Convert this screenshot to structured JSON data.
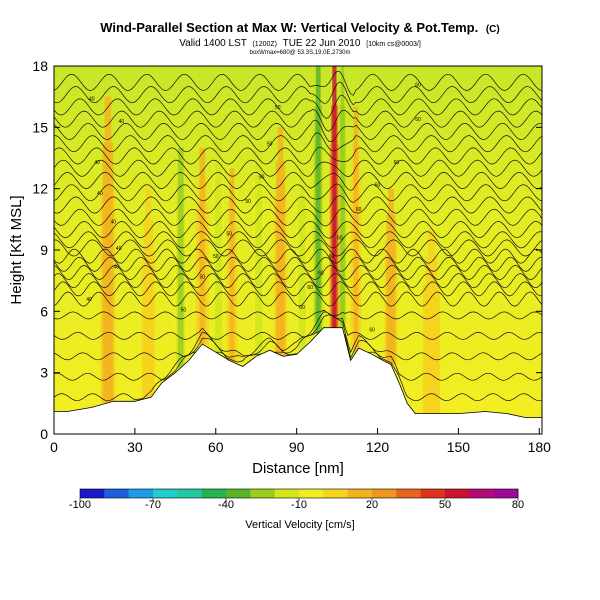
{
  "chart_data": {
    "type": "heatmap",
    "title": "Wind-Parallel Section at Max W: Vertical Velocity & Pot.Temp.",
    "title_mark": "(C)",
    "subtitle_main": "Valid 1400 LST",
    "subtitle_utc": "(1200Z)",
    "subtitle_date": "TUE 22 Jun 2010",
    "subtitle_run": "[10km cs@0003/]",
    "subtitle_note": "boxWmax=680@ 53.3S,19.0E,2730m",
    "xlabel": "Distance [nm]",
    "ylabel": "Height [Kft MSL]",
    "xlim": [
      0,
      181
    ],
    "ylim": [
      0,
      18
    ],
    "x_ticks": [
      "0",
      "30",
      "60",
      "90",
      "120",
      "150",
      "180"
    ],
    "y_ticks": [
      "0",
      "3",
      "6",
      "9",
      "12",
      "15",
      "18"
    ],
    "colorbar": {
      "label": "Vertical Velocity [cm/s]",
      "range": [
        -100,
        80
      ],
      "ticks": [
        "-100",
        "-70",
        "-40",
        "-10",
        "20",
        "50",
        "80"
      ],
      "colors": [
        "#1a1ac8",
        "#1e5ee0",
        "#1e9be6",
        "#22cdd0",
        "#22c8a0",
        "#26b450",
        "#5ab428",
        "#9ccd1e",
        "#d2e61e",
        "#f0ee22",
        "#f7d21e",
        "#f2b41e",
        "#ef961e",
        "#e6641e",
        "#dc321e",
        "#c81432",
        "#b40a78",
        "#9a0a96"
      ]
    },
    "terrain_profile": [
      [
        0,
        1.1
      ],
      [
        5,
        1.1
      ],
      [
        14,
        1.3
      ],
      [
        22,
        1.6
      ],
      [
        30,
        1.6
      ],
      [
        36,
        1.8
      ],
      [
        40,
        2.5
      ],
      [
        45,
        3.0
      ],
      [
        50,
        3.6
      ],
      [
        55,
        4.4
      ],
      [
        60,
        4.0
      ],
      [
        65,
        3.6
      ],
      [
        70,
        3.3
      ],
      [
        75,
        3.8
      ],
      [
        80,
        4.1
      ],
      [
        85,
        3.8
      ],
      [
        90,
        3.9
      ],
      [
        95,
        4.5
      ],
      [
        100,
        5.2
      ],
      [
        107,
        5.2
      ],
      [
        110,
        3.6
      ],
      [
        113,
        4.2
      ],
      [
        118,
        3.9
      ],
      [
        122,
        3.6
      ],
      [
        125,
        3.4
      ],
      [
        128,
        2.5
      ],
      [
        131,
        1.5
      ],
      [
        134,
        1.0
      ],
      [
        150,
        1.0
      ],
      [
        160,
        1.1
      ],
      [
        168,
        1.0
      ],
      [
        175,
        0.8
      ],
      [
        181,
        0.8
      ]
    ],
    "isentropes_kft": [
      1.8,
      2.8,
      3.8,
      4.8,
      5.8,
      6.6,
      7.1,
      7.5,
      7.9,
      8.3,
      8.7,
      9.1,
      9.5,
      10.0,
      10.6,
      11.2,
      11.8,
      12.4,
      13.0,
      13.6,
      14.2,
      14.8,
      15.4,
      16.0,
      16.6,
      17.2
    ],
    "contour_labels": [
      "40",
      "50",
      "60"
    ],
    "updrafts": [
      {
        "x": 20,
        "w": 18,
        "top": 16.5,
        "width": 3.5
      },
      {
        "x": 35,
        "w": 10,
        "top": 12,
        "width": 3
      },
      {
        "x": 47,
        "w": -28,
        "top": 14,
        "width": 3
      },
      {
        "x": 55,
        "w": 14,
        "top": 14,
        "width": 3
      },
      {
        "x": 61,
        "w": -22,
        "top": 17,
        "width": 2.5
      },
      {
        "x": 66,
        "w": 16,
        "top": 13,
        "width": 2.5
      },
      {
        "x": 76,
        "w": -20,
        "top": 16,
        "width": 2.5
      },
      {
        "x": 84,
        "w": 20,
        "top": 15,
        "width": 3
      },
      {
        "x": 92,
        "w": -18,
        "top": 13,
        "width": 2.5
      },
      {
        "x": 98,
        "w": -45,
        "top": 18,
        "width": 2.5
      },
      {
        "x": 104,
        "w": 62,
        "top": 18,
        "width": 2.2
      },
      {
        "x": 107,
        "w": -35,
        "top": 18,
        "width": 1.8
      },
      {
        "x": 112,
        "w": 12,
        "top": 16,
        "width": 2.5
      },
      {
        "x": 125,
        "w": 18,
        "top": 12,
        "width": 3
      },
      {
        "x": 140,
        "w": 8,
        "top": 10,
        "width": 4
      }
    ]
  }
}
